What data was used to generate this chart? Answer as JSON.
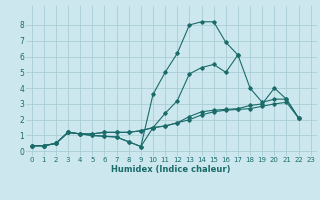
{
  "title": "",
  "xlabel": "Humidex (Indice chaleur)",
  "bg_color": "#cce8ee",
  "grid_color": "#aacdd5",
  "line_color": "#1a6b6a",
  "xlim": [
    -0.5,
    23.5
  ],
  "ylim": [
    -0.3,
    9.2
  ],
  "xticks": [
    0,
    1,
    2,
    3,
    4,
    5,
    6,
    7,
    8,
    9,
    10,
    11,
    12,
    13,
    14,
    15,
    16,
    17,
    18,
    19,
    20,
    21,
    22,
    23
  ],
  "yticks": [
    0,
    1,
    2,
    3,
    4,
    5,
    6,
    7,
    8
  ],
  "series": [
    {
      "x": [
        0,
        1,
        2,
        3,
        4,
        5,
        6,
        7,
        8,
        9,
        10,
        11,
        12,
        13,
        14,
        15,
        16,
        17,
        18,
        19,
        20,
        21
      ],
      "y": [
        0.35,
        0.35,
        0.5,
        1.2,
        1.1,
        1.0,
        0.95,
        0.9,
        0.6,
        0.3,
        3.6,
        5.0,
        6.2,
        8.0,
        8.2,
        8.2,
        6.9,
        6.1,
        null,
        null,
        null,
        null
      ]
    },
    {
      "x": [
        0,
        1,
        2,
        3,
        4,
        5,
        6,
        7,
        8,
        9,
        10,
        11,
        12,
        13,
        14,
        15,
        16,
        17,
        18,
        19,
        20,
        21,
        22
      ],
      "y": [
        0.35,
        0.35,
        0.5,
        1.2,
        1.1,
        1.0,
        0.95,
        0.9,
        0.6,
        0.3,
        1.5,
        2.4,
        3.2,
        4.9,
        5.3,
        5.5,
        5.0,
        6.1,
        4.0,
        3.1,
        3.3,
        3.3,
        2.1
      ]
    },
    {
      "x": [
        0,
        1,
        2,
        3,
        4,
        5,
        6,
        7,
        8,
        9,
        10,
        11,
        12,
        13,
        14,
        15,
        16,
        17,
        18,
        19,
        20,
        21,
        22
      ],
      "y": [
        0.35,
        0.35,
        0.5,
        1.2,
        1.1,
        1.1,
        1.2,
        1.2,
        1.2,
        1.3,
        1.5,
        1.6,
        1.8,
        2.2,
        2.5,
        2.6,
        2.65,
        2.7,
        2.9,
        3.0,
        4.0,
        3.3,
        2.1
      ]
    },
    {
      "x": [
        0,
        1,
        2,
        3,
        4,
        5,
        6,
        7,
        8,
        9,
        10,
        11,
        12,
        13,
        14,
        15,
        16,
        17,
        18,
        19,
        20,
        21,
        22
      ],
      "y": [
        0.35,
        0.35,
        0.5,
        1.2,
        1.1,
        1.1,
        1.2,
        1.2,
        1.2,
        1.3,
        1.5,
        1.6,
        1.8,
        2.0,
        2.3,
        2.5,
        2.6,
        2.65,
        2.7,
        2.85,
        3.0,
        3.1,
        2.1
      ]
    }
  ]
}
